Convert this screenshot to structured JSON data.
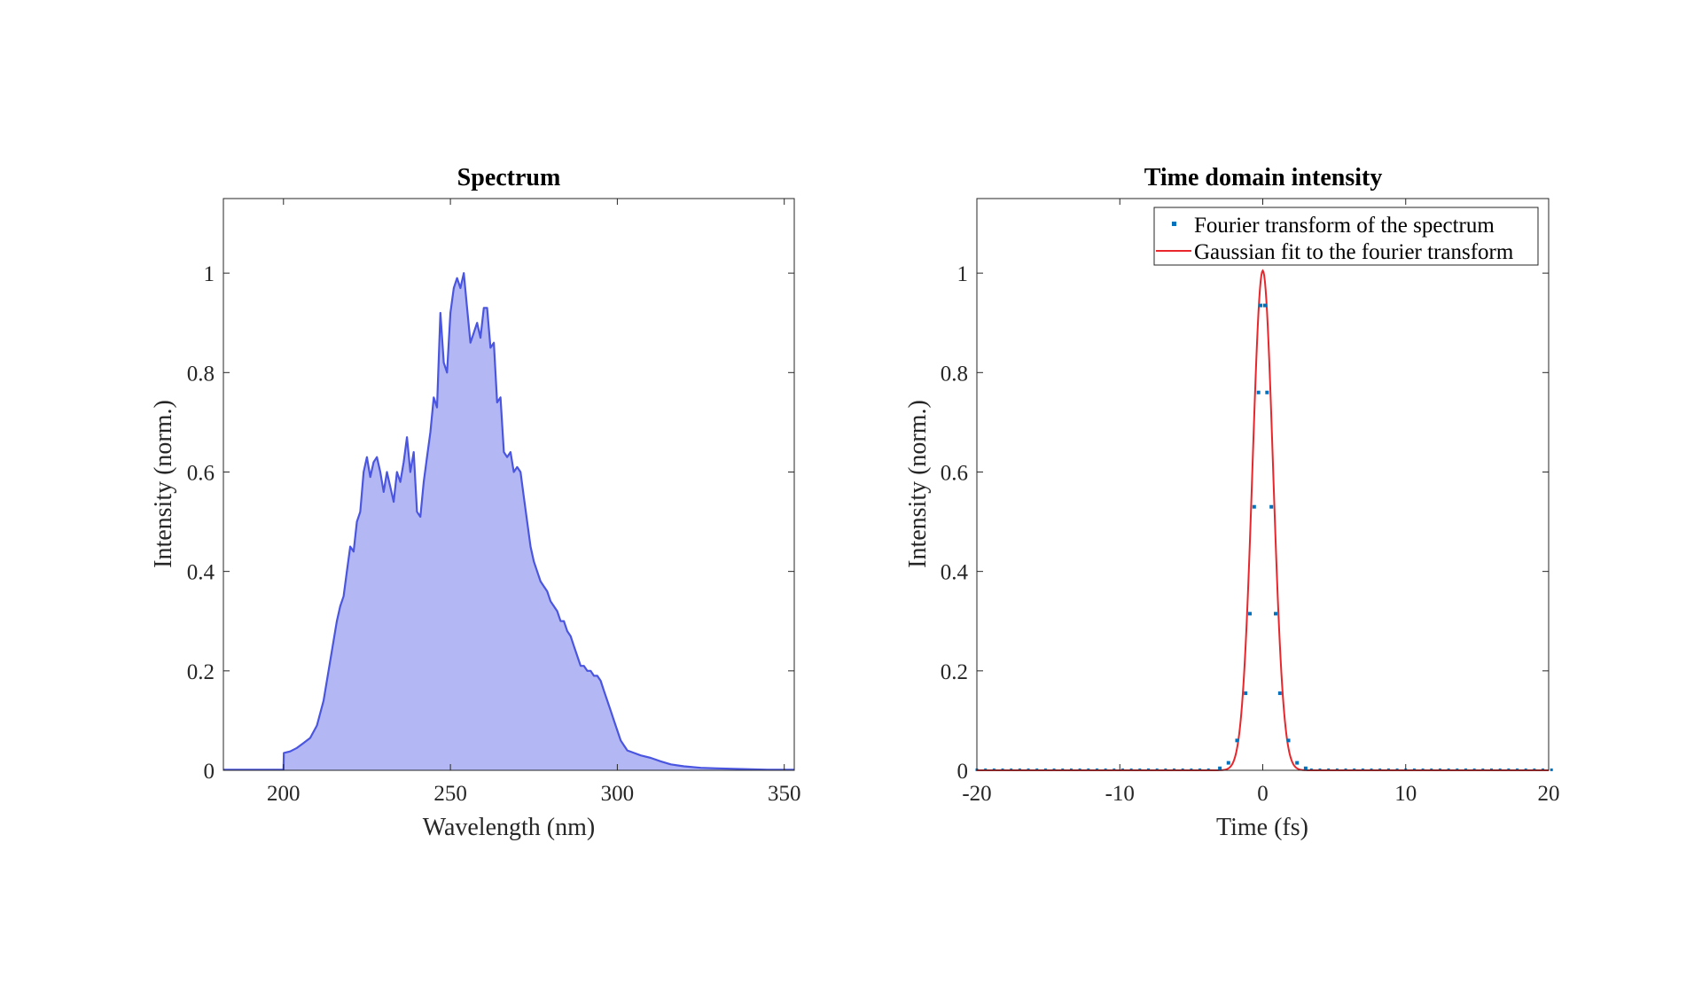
{
  "chart_data": [
    {
      "type": "area",
      "title": "Spectrum",
      "xlabel": "Wavelength (nm)",
      "ylabel": "Intensity (norm.)",
      "xlim": [
        182,
        353
      ],
      "ylim": [
        0,
        1.15
      ],
      "xticks": [
        200,
        250,
        300,
        350
      ],
      "yticks": [
        0,
        0.2,
        0.4,
        0.6,
        0.8,
        1
      ],
      "grid": false,
      "colors": {
        "line": "#4a55e0",
        "fill": "#b3b8f5"
      },
      "series": [
        {
          "x": [
            182,
            195,
            200,
            200.1,
            202,
            204,
            206,
            208,
            210,
            212,
            214,
            216,
            217,
            218,
            219,
            220,
            221,
            222,
            223,
            224,
            225,
            226,
            227,
            228,
            229,
            230,
            231,
            232,
            233,
            234,
            235,
            236,
            237,
            238,
            239,
            240,
            241,
            242,
            243,
            244,
            245,
            246,
            247,
            248,
            249,
            250,
            251,
            252,
            253,
            254,
            255,
            256,
            257,
            258,
            259,
            260,
            261,
            262,
            263,
            264,
            265,
            266,
            267,
            268,
            269,
            270,
            271,
            272,
            273,
            274,
            275,
            276,
            277,
            278,
            279,
            280,
            281,
            282,
            283,
            284,
            285,
            286,
            287,
            288,
            289,
            290,
            291,
            292,
            293,
            294,
            295,
            296,
            297,
            298,
            299,
            300,
            301,
            302,
            303,
            305,
            307,
            310,
            313,
            316,
            320,
            325,
            330,
            335,
            340,
            345,
            353
          ],
          "y": [
            0.001,
            0.001,
            0.001,
            0.035,
            0.038,
            0.045,
            0.055,
            0.065,
            0.09,
            0.14,
            0.22,
            0.3,
            0.33,
            0.35,
            0.4,
            0.45,
            0.44,
            0.5,
            0.52,
            0.6,
            0.63,
            0.59,
            0.62,
            0.63,
            0.6,
            0.56,
            0.6,
            0.57,
            0.54,
            0.6,
            0.58,
            0.62,
            0.67,
            0.6,
            0.64,
            0.52,
            0.51,
            0.58,
            0.63,
            0.68,
            0.75,
            0.73,
            0.92,
            0.82,
            0.8,
            0.92,
            0.97,
            0.99,
            0.97,
            1.0,
            0.93,
            0.86,
            0.88,
            0.9,
            0.87,
            0.93,
            0.93,
            0.85,
            0.86,
            0.74,
            0.75,
            0.64,
            0.63,
            0.64,
            0.6,
            0.61,
            0.6,
            0.55,
            0.5,
            0.45,
            0.42,
            0.4,
            0.38,
            0.37,
            0.36,
            0.34,
            0.33,
            0.32,
            0.3,
            0.3,
            0.28,
            0.27,
            0.25,
            0.23,
            0.21,
            0.21,
            0.2,
            0.2,
            0.19,
            0.19,
            0.18,
            0.16,
            0.14,
            0.12,
            0.1,
            0.08,
            0.06,
            0.05,
            0.04,
            0.035,
            0.03,
            0.025,
            0.018,
            0.012,
            0.008,
            0.005,
            0.004,
            0.003,
            0.002,
            0.001,
            0.001
          ]
        }
      ]
    },
    {
      "type": "line",
      "title": "Time domain intensity",
      "xlabel": "Time (fs)",
      "ylabel": "Intensity (norm.)",
      "xlim": [
        -20,
        20
      ],
      "ylim": [
        0,
        1.15
      ],
      "xticks": [
        -20,
        -10,
        0,
        10,
        20
      ],
      "yticks": [
        0,
        0.2,
        0.4,
        0.6,
        0.8,
        1
      ],
      "grid": false,
      "legend": "top-right",
      "series": [
        {
          "name": "Fourier transform of the spectrum",
          "style": "points",
          "color": "#0072bd",
          "x_start": -20,
          "x_end": 20,
          "x_step": 0.6,
          "values": [
            {
              "x": -3,
              "y": 0.004
            },
            {
              "x": -2.4,
              "y": 0.015
            },
            {
              "x": -1.8,
              "y": 0.06
            },
            {
              "x": -1.2,
              "y": 0.155
            },
            {
              "x": -0.9,
              "y": 0.315
            },
            {
              "x": -0.6,
              "y": 0.53
            },
            {
              "x": -0.3,
              "y": 0.76
            },
            {
              "x": -0.15,
              "y": 0.935
            },
            {
              "x": 0.15,
              "y": 0.935
            },
            {
              "x": 0.3,
              "y": 0.76
            },
            {
              "x": 0.6,
              "y": 0.53
            },
            {
              "x": 0.9,
              "y": 0.315
            },
            {
              "x": 1.2,
              "y": 0.155
            },
            {
              "x": 1.8,
              "y": 0.06
            },
            {
              "x": 2.4,
              "y": 0.015
            },
            {
              "x": 3,
              "y": 0.004
            }
          ]
        },
        {
          "name": "Gaussian fit to the fourier transform",
          "style": "line",
          "color": "#e8262b",
          "peak": 1.005,
          "center": 0,
          "sigma": 0.72
        }
      ]
    }
  ]
}
